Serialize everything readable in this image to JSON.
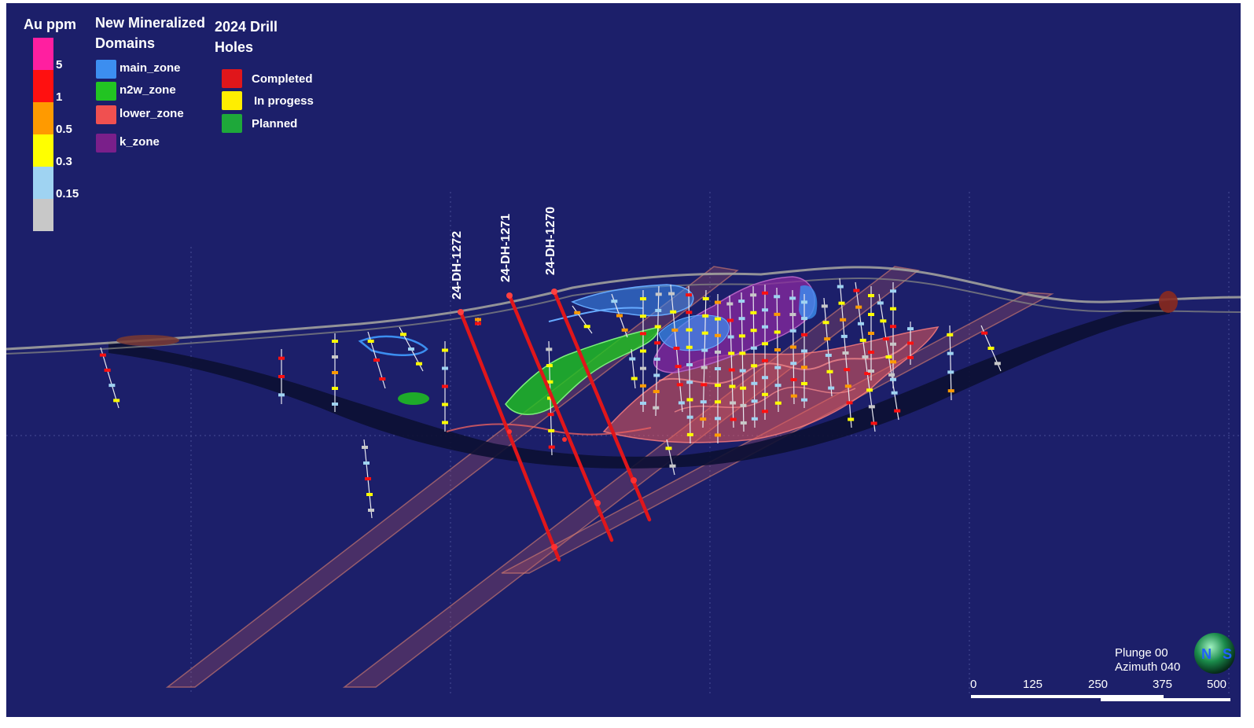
{
  "legend_au": {
    "title": "Au ppm",
    "grades": [
      {
        "label": "5",
        "color": "#ff1fa0"
      },
      {
        "label": "1",
        "color": "#ff1010"
      },
      {
        "label": "0.5",
        "color": "#ff9a00"
      },
      {
        "label": "0.3",
        "color": "#ffff00"
      },
      {
        "label": "0.15",
        "color": "#9fd3f2"
      },
      {
        "label": "",
        "color": "#c8c8c8"
      }
    ]
  },
  "legend_domains": {
    "title_line1": "New Mineralized",
    "title_line2": "Domains",
    "items": [
      {
        "label": "main_zone",
        "color": "#3c8ef0"
      },
      {
        "label": "n2w_zone",
        "color": "#22c422"
      },
      {
        "label": "lower_zone",
        "color": "#f05050"
      },
      {
        "label": "k_zone",
        "color": "#7a1f8a"
      }
    ]
  },
  "legend_drill": {
    "title_line1": "2024 Drill",
    "title_line2": "Holes",
    "items": [
      {
        "label": "Completed",
        "color": "#e0161b"
      },
      {
        "label": "In progess",
        "color": "#ffee00"
      },
      {
        "label": "Planned",
        "color": "#1ea83a"
      }
    ]
  },
  "drill_holes": [
    {
      "name": "24-DH-1272"
    },
    {
      "name": "24-DH-1271"
    },
    {
      "name": "24-DH-1270"
    }
  ],
  "view": {
    "plunge": "Plunge 00",
    "azimuth": "Azimuth 040"
  },
  "scale_bar": {
    "ticks": [
      "0",
      "125",
      "250",
      "375",
      "500"
    ]
  },
  "colors": {
    "background": "#1c1f6a",
    "drill_completed": "#e0161b"
  }
}
